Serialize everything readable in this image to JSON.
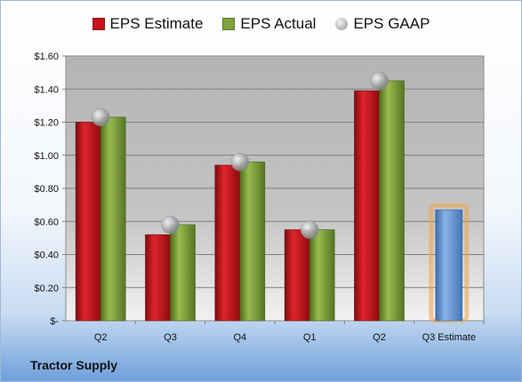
{
  "chart_data": {
    "type": "bar",
    "categories": [
      "Q2",
      "Q3",
      "Q4",
      "Q1",
      "Q2",
      "Q3 Estimate"
    ],
    "series": [
      {
        "name": "EPS Estimate",
        "values": [
          1.2,
          0.52,
          0.94,
          0.55,
          1.39,
          null
        ],
        "color": "#c8141c"
      },
      {
        "name": "EPS Actual",
        "values": [
          1.23,
          0.58,
          0.96,
          0.55,
          1.45,
          null
        ],
        "color": "#7fa23b"
      },
      {
        "name": "EPS GAAP",
        "values": [
          1.23,
          0.58,
          0.96,
          0.55,
          1.45,
          null
        ],
        "color": "#a9abae"
      }
    ],
    "estimate": {
      "category": "Q3 Estimate",
      "value": 0.67,
      "color": "#5b8fd0",
      "glow": "#f0a34a"
    },
    "y_ticks": [
      {
        "value": 0,
        "label": "$-"
      },
      {
        "value": 0.2,
        "label": "$0.20"
      },
      {
        "value": 0.4,
        "label": "$0.40"
      },
      {
        "value": 0.6,
        "label": "$0.60"
      },
      {
        "value": 0.8,
        "label": "$0.80"
      },
      {
        "value": 1.0,
        "label": "$1.00"
      },
      {
        "value": 1.2,
        "label": "$1.20"
      },
      {
        "value": 1.4,
        "label": "$1.40"
      },
      {
        "value": 1.6,
        "label": "$1.60"
      }
    ],
    "ylim": [
      0,
      1.6
    ],
    "grid": true,
    "legend_position": "top"
  },
  "company_name": "Tractor Supply"
}
